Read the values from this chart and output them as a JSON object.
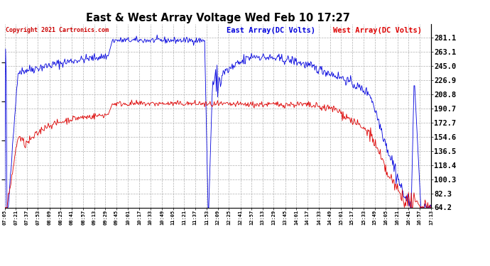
{
  "title": "East & West Array Voltage Wed Feb 10 17:27",
  "legend_east": "East Array(DC Volts)",
  "legend_west": "West Array(DC Volts)",
  "copyright": "Copyright 2021 Cartronics.com",
  "ylabel_right_values": [
    281.1,
    263.1,
    245.0,
    226.9,
    208.8,
    190.7,
    172.7,
    154.6,
    136.5,
    118.4,
    100.3,
    82.3,
    64.2
  ],
  "ymin": 64.2,
  "ymax": 299.0,
  "bg_color": "#ffffff",
  "plot_bg_color": "#ffffff",
  "grid_color": "#b0b0b0",
  "east_color": "#0000dd",
  "west_color": "#dd0000",
  "title_color": "#000000",
  "copyright_color": "#cc0000",
  "x_labels": [
    "07:05",
    "07:21",
    "07:37",
    "07:53",
    "08:09",
    "08:25",
    "08:41",
    "08:57",
    "09:13",
    "09:29",
    "09:45",
    "10:01",
    "10:17",
    "10:33",
    "10:49",
    "11:05",
    "11:21",
    "11:37",
    "11:53",
    "12:09",
    "12:25",
    "12:41",
    "12:57",
    "13:13",
    "13:29",
    "13:45",
    "14:01",
    "14:17",
    "14:33",
    "14:49",
    "15:01",
    "15:17",
    "15:33",
    "15:49",
    "16:05",
    "16:21",
    "16:41",
    "16:57",
    "17:13"
  ]
}
